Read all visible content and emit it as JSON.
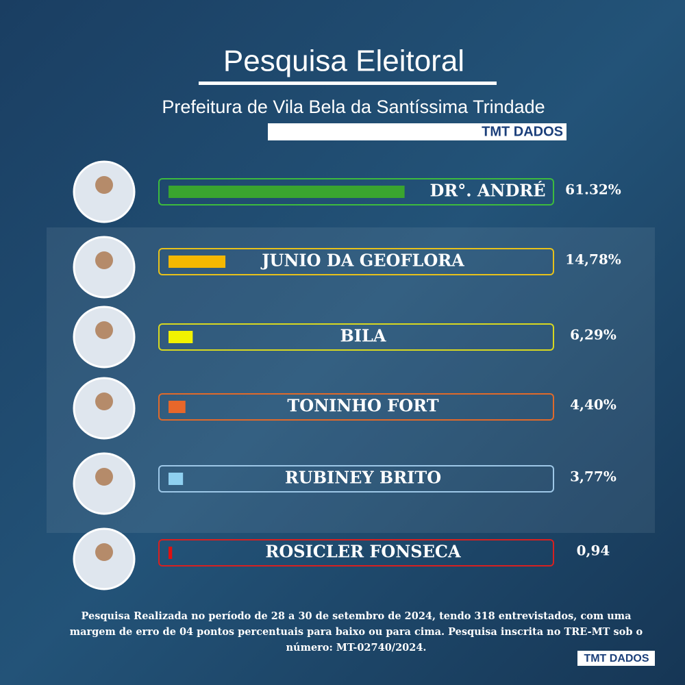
{
  "chart_data": {
    "type": "bar",
    "title": "Pesquisa Eleitoral",
    "subtitle": "Prefeitura de Vila Bela da Santíssima Trindade",
    "brand": "TMT DADOS",
    "categories": [
      "DR°. ANDRÉ",
      "JUNIO DA GEOFLORA",
      "BILA",
      "TONINHO FORT",
      "RUBINEY BRITO",
      "ROSICLER FONSECA"
    ],
    "values": [
      61.32,
      14.78,
      6.29,
      4.4,
      3.77,
      0.94
    ],
    "value_labels": [
      "61.32%",
      "14,78%",
      "6,29%",
      "4,40%",
      "3,77%",
      "0,94"
    ],
    "colors": [
      "#3aa52f",
      "#f5b800",
      "#f2f200",
      "#e8672a",
      "#8fd0f0",
      "#e01010"
    ],
    "border_colors": [
      "#3dbb3d",
      "#e8c21a",
      "#d8d820",
      "#e06a2a",
      "#9ec8e8",
      "#d82020"
    ],
    "xlim": [
      0,
      100
    ],
    "note": "Pesquisa Realizada no período de 28 a 30 de setembro de 2024, tendo 318 entrevistados, com uma margem de erro de  04 pontos percentuais para baixo ou para cima. Pesquisa inscrita no TRE-MT sob o número: MT-02740/2024."
  }
}
